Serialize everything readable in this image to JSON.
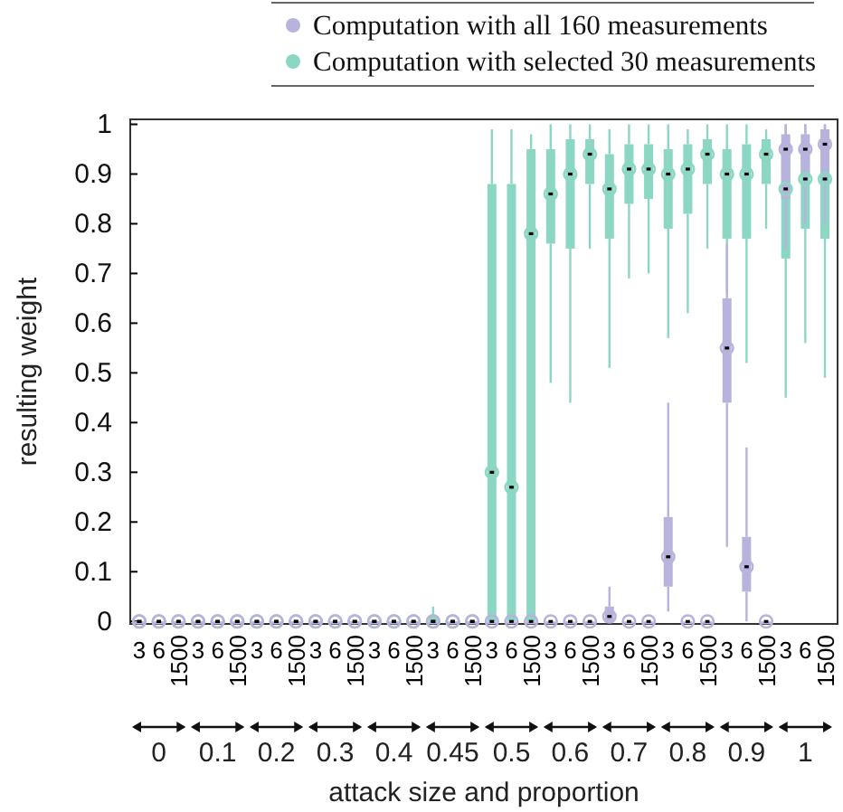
{
  "chart_data": {
    "type": "box",
    "xlabel": "attack size and proportion",
    "ylabel": "resulting weight",
    "categories": [
      "3",
      "6",
      "1500",
      "3",
      "6",
      "1500",
      "3",
      "6",
      "1500",
      "3",
      "6",
      "1500",
      "3",
      "6",
      "1500",
      "3",
      "6",
      "1500",
      "3",
      "6",
      "1500",
      "3",
      "6",
      "1500",
      "3",
      "6",
      "1500",
      "3",
      "6",
      "1500",
      "3",
      "6",
      "1500",
      "3",
      "6",
      "1500"
    ],
    "annotations": [
      "0",
      "0.1",
      "0.2",
      "0.3",
      "0.4",
      "0.45",
      "0.5",
      "0.6",
      "0.7",
      "0.8",
      "0.9",
      "1"
    ],
    "ylim": [
      -0.005,
      1.01
    ],
    "yticks": [
      0,
      0.1,
      0.2,
      0.3,
      0.4,
      0.5,
      0.6,
      0.7,
      0.8,
      0.9,
      1
    ],
    "legend": "top right",
    "series": [
      {
        "name": "Computation with selected 30 measurements",
        "color": "#8cd6c4",
        "boxes": [
          {
            "low": 0,
            "q1": 0,
            "median": 0,
            "q3": 0,
            "high": 0
          },
          {
            "low": 0,
            "q1": 0,
            "median": 0,
            "q3": 0,
            "high": 0
          },
          {
            "low": 0,
            "q1": 0,
            "median": 0,
            "q3": 0,
            "high": 0
          },
          {
            "low": 0,
            "q1": 0,
            "median": 0,
            "q3": 0,
            "high": 0
          },
          {
            "low": 0,
            "q1": 0,
            "median": 0,
            "q3": 0,
            "high": 0
          },
          {
            "low": 0,
            "q1": 0,
            "median": 0,
            "q3": 0,
            "high": 0
          },
          {
            "low": 0,
            "q1": 0,
            "median": 0,
            "q3": 0,
            "high": 0
          },
          {
            "low": 0,
            "q1": 0,
            "median": 0,
            "q3": 0,
            "high": 0
          },
          {
            "low": 0,
            "q1": 0,
            "median": 0,
            "q3": 0,
            "high": 0
          },
          {
            "low": 0,
            "q1": 0,
            "median": 0,
            "q3": 0,
            "high": 0
          },
          {
            "low": 0,
            "q1": 0,
            "median": 0,
            "q3": 0,
            "high": 0
          },
          {
            "low": 0,
            "q1": 0,
            "median": 0,
            "q3": 0,
            "high": 0
          },
          {
            "low": 0,
            "q1": 0,
            "median": 0,
            "q3": 0,
            "high": 0
          },
          {
            "low": 0,
            "q1": 0,
            "median": 0,
            "q3": 0,
            "high": 0
          },
          {
            "low": 0,
            "q1": 0,
            "median": 0,
            "q3": 0,
            "high": 0
          },
          {
            "low": 0,
            "q1": 0,
            "median": 0,
            "q3": 0.01,
            "high": 0.03
          },
          {
            "low": 0,
            "q1": 0,
            "median": 0,
            "q3": 0,
            "high": 0
          },
          {
            "low": 0,
            "q1": 0,
            "median": 0,
            "q3": 0,
            "high": 0
          },
          {
            "low": 0,
            "q1": 0,
            "median": 0.3,
            "q3": 0.88,
            "high": 0.99
          },
          {
            "low": 0,
            "q1": 0,
            "median": 0.27,
            "q3": 0.88,
            "high": 0.99
          },
          {
            "low": 0,
            "q1": 0,
            "median": 0.78,
            "q3": 0.95,
            "high": 0.98
          },
          {
            "low": 0.48,
            "q1": 0.76,
            "median": 0.86,
            "q3": 0.95,
            "high": 1
          },
          {
            "low": 0.44,
            "q1": 0.75,
            "median": 0.9,
            "q3": 0.97,
            "high": 1
          },
          {
            "low": 0.75,
            "q1": 0.88,
            "median": 0.94,
            "q3": 0.97,
            "high": 1
          },
          {
            "low": 0.51,
            "q1": 0.77,
            "median": 0.87,
            "q3": 0.94,
            "high": 0.99
          },
          {
            "low": 0.69,
            "q1": 0.84,
            "median": 0.91,
            "q3": 0.96,
            "high": 1
          },
          {
            "low": 0.7,
            "q1": 0.85,
            "median": 0.91,
            "q3": 0.96,
            "high": 1
          },
          {
            "low": 0.57,
            "q1": 0.79,
            "median": 0.9,
            "q3": 0.95,
            "high": 1
          },
          {
            "low": 0.62,
            "q1": 0.82,
            "median": 0.91,
            "q3": 0.96,
            "high": 0.99
          },
          {
            "low": 0.75,
            "q1": 0.88,
            "median": 0.94,
            "q3": 0.97,
            "high": 1
          },
          {
            "low": 0.66,
            "q1": 0.77,
            "median": 0.9,
            "q3": 0.95,
            "high": 1
          },
          {
            "low": 0.52,
            "q1": 0.77,
            "median": 0.9,
            "q3": 0.96,
            "high": 1
          },
          {
            "low": 0.79,
            "q1": 0.88,
            "median": 0.94,
            "q3": 0.97,
            "high": 0.99
          },
          {
            "low": 0.45,
            "q1": 0.73,
            "median": 0.87,
            "q3": 0.96,
            "high": 1
          },
          {
            "low": 0.56,
            "q1": 0.79,
            "median": 0.89,
            "q3": 0.95,
            "high": 1
          },
          {
            "low": 0.49,
            "q1": 0.77,
            "median": 0.89,
            "q3": 0.95,
            "high": 1
          }
        ]
      },
      {
        "name": "Computation with all 160 measurements",
        "color": "#b7b3dc",
        "boxes": [
          {
            "low": 0,
            "q1": 0,
            "median": 0,
            "q3": 0,
            "high": 0
          },
          {
            "low": 0,
            "q1": 0,
            "median": 0,
            "q3": 0,
            "high": 0
          },
          {
            "low": 0,
            "q1": 0,
            "median": 0,
            "q3": 0,
            "high": 0
          },
          {
            "low": 0,
            "q1": 0,
            "median": 0,
            "q3": 0,
            "high": 0
          },
          {
            "low": 0,
            "q1": 0,
            "median": 0,
            "q3": 0,
            "high": 0
          },
          {
            "low": 0,
            "q1": 0,
            "median": 0,
            "q3": 0,
            "high": 0
          },
          {
            "low": 0,
            "q1": 0,
            "median": 0,
            "q3": 0,
            "high": 0
          },
          {
            "low": 0,
            "q1": 0,
            "median": 0,
            "q3": 0,
            "high": 0
          },
          {
            "low": 0,
            "q1": 0,
            "median": 0,
            "q3": 0,
            "high": 0
          },
          {
            "low": 0,
            "q1": 0,
            "median": 0,
            "q3": 0,
            "high": 0
          },
          {
            "low": 0,
            "q1": 0,
            "median": 0,
            "q3": 0,
            "high": 0
          },
          {
            "low": 0,
            "q1": 0,
            "median": 0,
            "q3": 0,
            "high": 0
          },
          {
            "low": 0,
            "q1": 0,
            "median": 0,
            "q3": 0,
            "high": 0
          },
          {
            "low": 0,
            "q1": 0,
            "median": 0,
            "q3": 0,
            "high": 0
          },
          {
            "low": 0,
            "q1": 0,
            "median": 0,
            "q3": 0,
            "high": 0
          },
          {
            "low": 0,
            "q1": 0,
            "median": 0,
            "q3": 0,
            "high": 0
          },
          {
            "low": 0,
            "q1": 0,
            "median": 0,
            "q3": 0,
            "high": 0
          },
          {
            "low": 0,
            "q1": 0,
            "median": 0,
            "q3": 0,
            "high": 0
          },
          {
            "low": 0,
            "q1": 0,
            "median": 0,
            "q3": 0,
            "high": 0
          },
          {
            "low": 0,
            "q1": 0,
            "median": 0,
            "q3": 0,
            "high": 0
          },
          {
            "low": 0,
            "q1": 0,
            "median": 0,
            "q3": 0,
            "high": 0
          },
          {
            "low": 0,
            "q1": 0,
            "median": 0,
            "q3": 0,
            "high": 0
          },
          {
            "low": 0,
            "q1": 0,
            "median": 0,
            "q3": 0,
            "high": 0
          },
          {
            "low": 0,
            "q1": 0,
            "median": 0,
            "q3": 0,
            "high": 0
          },
          {
            "low": 0,
            "q1": 0,
            "median": 0.01,
            "q3": 0.03,
            "high": 0.07
          },
          {
            "low": 0,
            "q1": 0,
            "median": 0,
            "q3": 0,
            "high": 0
          },
          {
            "low": 0,
            "q1": 0,
            "median": 0,
            "q3": 0,
            "high": 0
          },
          {
            "low": 0.02,
            "q1": 0.07,
            "median": 0.13,
            "q3": 0.21,
            "high": 0.44
          },
          {
            "low": 0,
            "q1": 0,
            "median": 0,
            "q3": 0,
            "high": 0
          },
          {
            "low": 0,
            "q1": 0,
            "median": 0,
            "q3": 0,
            "high": 0
          },
          {
            "low": 0.15,
            "q1": 0.44,
            "median": 0.55,
            "q3": 0.65,
            "high": 0.76
          },
          {
            "low": 0,
            "q1": 0.06,
            "median": 0.11,
            "q3": 0.17,
            "high": 0.35
          },
          {
            "low": 0,
            "q1": 0,
            "median": 0,
            "q3": 0,
            "high": 0
          },
          {
            "low": 0.75,
            "q1": 0.85,
            "median": 0.95,
            "q3": 0.98,
            "high": 1
          },
          {
            "low": 0.8,
            "q1": 0.9,
            "median": 0.95,
            "q3": 0.98,
            "high": 1
          },
          {
            "low": 0.8,
            "q1": 0.9,
            "median": 0.96,
            "q3": 0.99,
            "high": 1
          }
        ]
      }
    ]
  }
}
